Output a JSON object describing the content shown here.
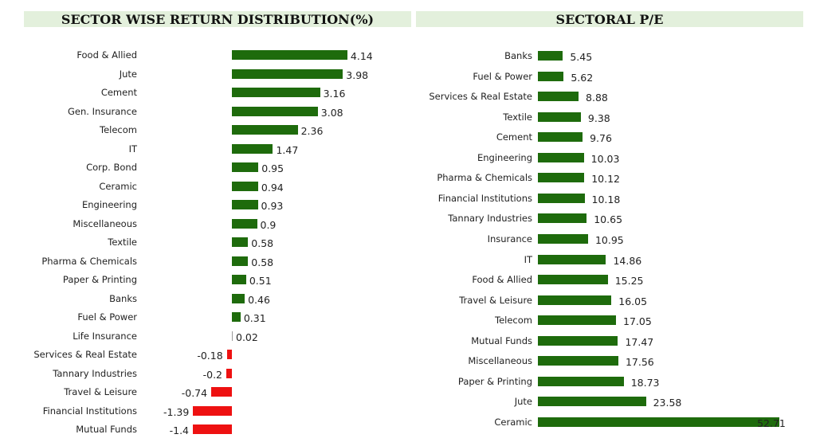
{
  "chart_data": [
    {
      "type": "bar",
      "orientation": "horizontal",
      "title": "SECTOR WISE RETURN DISTRIBUTION(%)",
      "categories": [
        "Food & Allied",
        "Jute",
        "Cement",
        "Gen. Insurance",
        "Telecom",
        "IT",
        "Corp. Bond",
        "Ceramic",
        "Engineering",
        "Miscellaneous",
        "Textile",
        "Pharma & Chemicals",
        "Paper & Printing",
        "Banks",
        "Fuel & Power",
        "Life Insurance",
        "Services & Real Estate",
        "Tannary Industries",
        "Travel & Leisure",
        "Financial Institutions",
        "Mutual Funds"
      ],
      "values": [
        4.14,
        3.98,
        3.16,
        3.08,
        2.36,
        1.47,
        0.95,
        0.94,
        0.93,
        0.9,
        0.58,
        0.58,
        0.51,
        0.46,
        0.31,
        0.02,
        -0.18,
        -0.2,
        -0.74,
        -1.39,
        -1.4
      ],
      "value_labels": [
        "4.14",
        "3.98",
        "3.16",
        "3.08",
        "2.36",
        "1.47",
        "0.95",
        "0.94",
        "0.93",
        "0.9",
        "0.58",
        "0.58",
        "0.51",
        "0.46",
        "0.31",
        "0.02",
        "-0.18",
        "-0.2",
        "-0.74",
        "-1.39",
        "-1.4"
      ],
      "colors": {
        "positive": "#1e6b0c",
        "negative": "#ee1111"
      }
    },
    {
      "type": "bar",
      "orientation": "horizontal",
      "title": "SECTORAL P/E",
      "categories": [
        "Banks",
        "Fuel & Power",
        "Services & Real Estate",
        "Textile",
        "Cement",
        "Engineering",
        "Pharma & Chemicals",
        "Financial Institutions",
        "Tannary Industries",
        "Insurance",
        "IT",
        "Food & Allied",
        "Travel & Leisure",
        "Telecom",
        "Mutual Funds",
        "Miscellaneous",
        "Paper & Printing",
        "Jute",
        "Ceramic"
      ],
      "values": [
        5.45,
        5.62,
        8.88,
        9.38,
        9.76,
        10.03,
        10.12,
        10.18,
        10.65,
        10.95,
        14.86,
        15.25,
        16.05,
        17.05,
        17.47,
        17.56,
        18.73,
        23.58,
        52.71
      ],
      "value_labels": [
        "5.45",
        "5.62",
        "8.88",
        "9.38",
        "9.76",
        "10.03",
        "10.12",
        "10.18",
        "10.65",
        "10.95",
        "14.86",
        "15.25",
        "16.05",
        "17.05",
        "17.47",
        "17.56",
        "18.73",
        "23.58",
        "52.71"
      ],
      "colors": {
        "positive": "#1e6b0c"
      }
    }
  ]
}
